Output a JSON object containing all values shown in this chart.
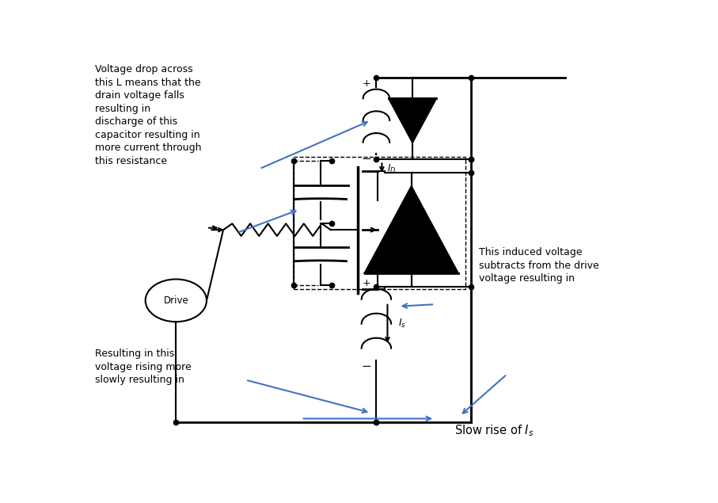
{
  "fig_width": 9.07,
  "fig_height": 6.35,
  "dpi": 100,
  "bg_color": "#ffffff",
  "lc": "#000000",
  "ac": "#4472C4",
  "text_top_left": "Voltage drop across\nthis L means that the\ndrain voltage falls\nresulting in\ndischarge of this\ncapacitor resulting in\nmore current through\nthis resistance",
  "text_bottom_left": "Resulting in this\nvoltage rising more\nslowly resulting in",
  "text_slow_rise": "Slow rise of I",
  "text_induced": "This induced voltage\nsubtracts from the drive\nvoltage resulting in",
  "text_drive": "Drive"
}
